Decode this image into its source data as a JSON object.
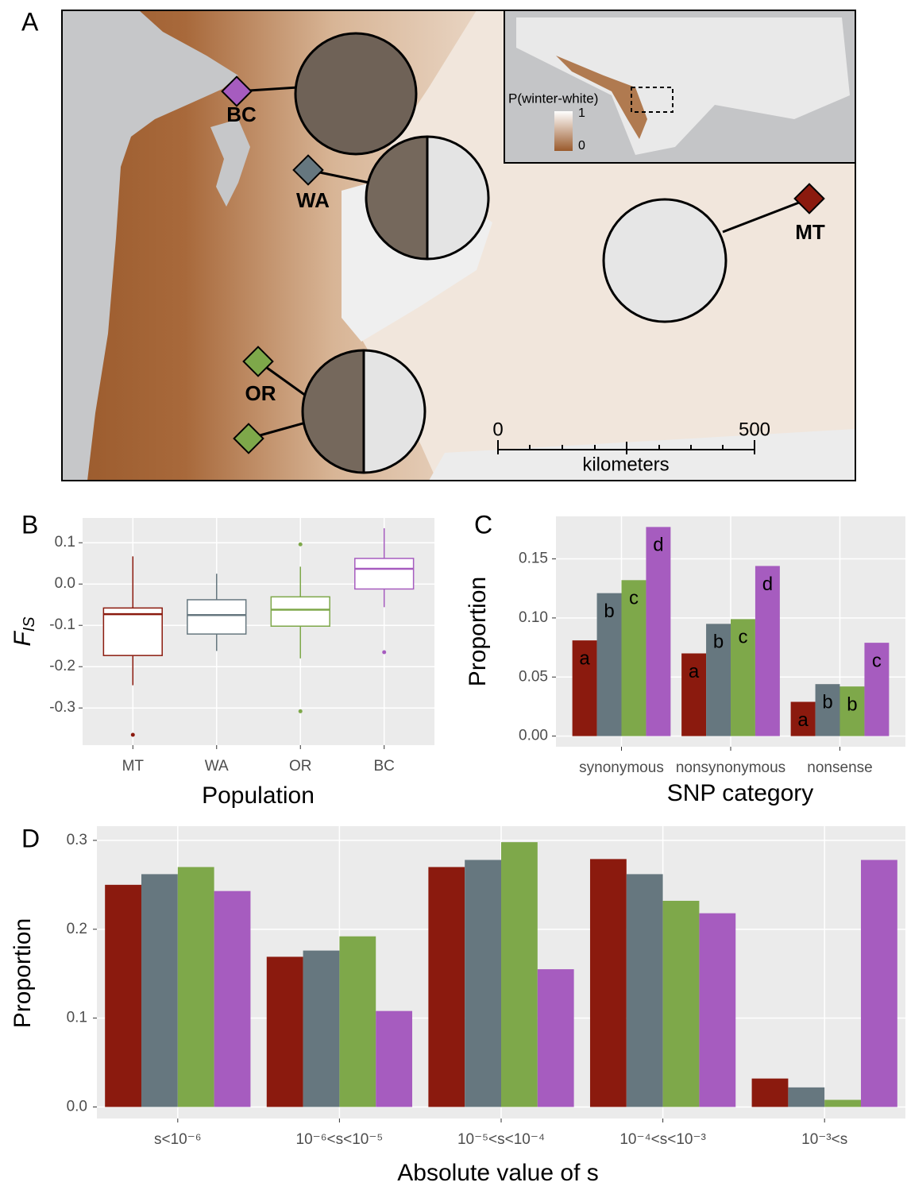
{
  "map": {
    "label": "A",
    "sites": [
      {
        "label": "BC",
        "color": "#a65cbf"
      },
      {
        "label": "WA",
        "color": "#66777f"
      },
      {
        "label": "OR",
        "color": "#7ea84a"
      },
      {
        "label": "MT",
        "color": "#8b1a0e"
      }
    ],
    "inset_legend": {
      "title": "P(winter-white)",
      "max": 1,
      "min": 0
    },
    "scale_bar": {
      "start": 0,
      "end": 500,
      "unit": "kilometers"
    }
  },
  "chart_data": [
    {
      "type": "box",
      "label": "B",
      "xlabel": "Population",
      "ylabel": "F",
      "ylabel_subscript": "IS",
      "categories": [
        "MT",
        "WA",
        "OR",
        "BC"
      ],
      "colors": [
        "#8b1a0e",
        "#66777f",
        "#7ea84a",
        "#a65cbf"
      ],
      "boxes": [
        {
          "min": -0.245,
          "q1": -0.173,
          "median": -0.073,
          "q3": -0.058,
          "max": 0.067,
          "outliers": [
            -0.365
          ]
        },
        {
          "min": -0.162,
          "q1": -0.121,
          "median": -0.075,
          "q3": -0.038,
          "max": 0.025,
          "outliers": []
        },
        {
          "min": -0.18,
          "q1": -0.102,
          "median": -0.062,
          "q3": -0.031,
          "max": 0.042,
          "outliers": [
            0.096,
            -0.308
          ]
        },
        {
          "min": -0.056,
          "q1": -0.012,
          "median": 0.037,
          "q3": 0.062,
          "max": 0.135,
          "outliers": [
            -0.165
          ]
        }
      ],
      "ylim": [
        -0.39,
        0.16
      ],
      "yticks": [
        0.1,
        {
          "value": 0,
          "label": "0.0"
        },
        -0.1,
        -0.2,
        -0.3
      ],
      "grid": true
    },
    {
      "type": "bar",
      "label": "C",
      "xlabel": "SNP category",
      "ylabel": "Proportion",
      "categories": [
        "synonymous",
        "nonsynonymous",
        "nonsense"
      ],
      "series": [
        {
          "color": "#8b1a0e",
          "values": [
            0.081,
            0.07,
            0.029
          ],
          "letters": [
            "a",
            "a",
            "a"
          ]
        },
        {
          "color": "#66777f",
          "values": [
            0.121,
            0.095,
            0.044
          ],
          "letters": [
            "b",
            "b",
            "b"
          ]
        },
        {
          "color": "#7ea84a",
          "values": [
            0.132,
            0.099,
            0.042
          ],
          "letters": [
            "c",
            "c",
            "b"
          ]
        },
        {
          "color": "#a65cbf",
          "values": [
            0.177,
            0.144,
            0.079
          ],
          "letters": [
            "d",
            "d",
            "c"
          ]
        }
      ],
      "ylim": [
        -0.009,
        0.186
      ],
      "yticks": [
        {
          "value": 0,
          "label": "0.00"
        },
        0.05,
        {
          "value": 0.1,
          "label": "0.10"
        },
        0.15
      ],
      "grid": true
    },
    {
      "type": "bar",
      "label": "D",
      "xlabel": "Absolute value of s",
      "ylabel": "Proportion",
      "categories": [
        "s<10⁻⁶",
        "10⁻⁶<s<10⁻⁵",
        "10⁻⁵<s<10⁻⁴",
        "10⁻⁴<s<10⁻³",
        "10⁻³<s"
      ],
      "series": [
        {
          "color": "#8b1a0e",
          "values": [
            0.25,
            0.169,
            0.27,
            0.279,
            0.032
          ]
        },
        {
          "color": "#66777f",
          "values": [
            0.262,
            0.176,
            0.278,
            0.262,
            0.022
          ]
        },
        {
          "color": "#7ea84a",
          "values": [
            0.27,
            0.192,
            0.298,
            0.232,
            0.008
          ]
        },
        {
          "color": "#a65cbf",
          "values": [
            0.243,
            0.108,
            0.155,
            0.218,
            0.278
          ]
        }
      ],
      "ylim": [
        -0.013,
        0.316
      ],
      "yticks": [
        {
          "value": 0,
          "label": "0.0"
        },
        0.1,
        0.2,
        0.3
      ],
      "grid": true
    }
  ]
}
